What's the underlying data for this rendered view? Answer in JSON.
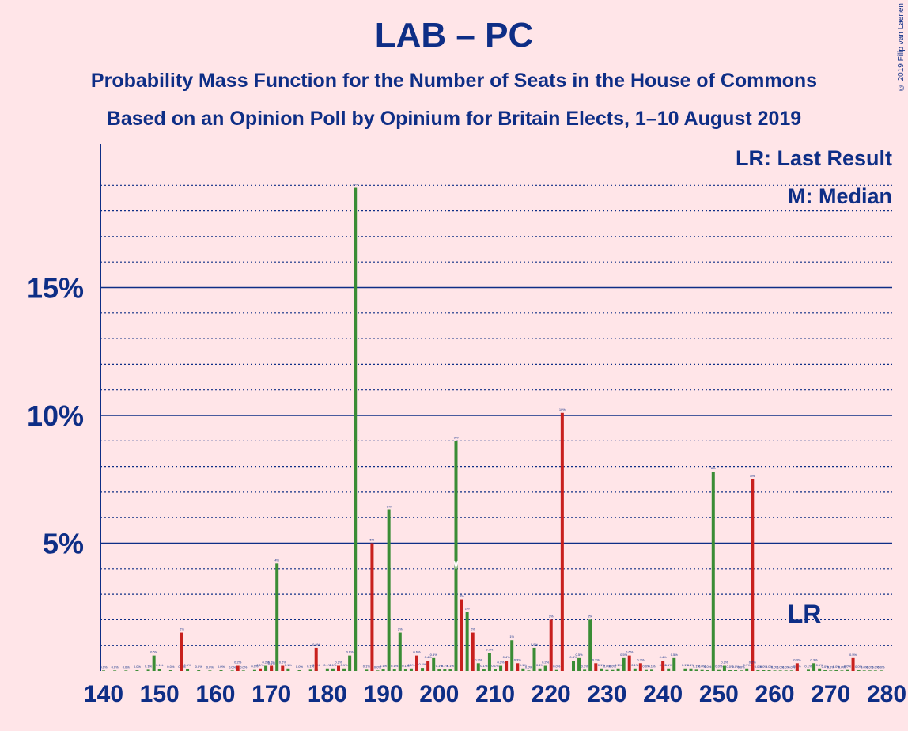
{
  "title": "LAB – PC",
  "subtitle1": "Probability Mass Function for the Number of Seats in the House of Commons",
  "subtitle2": "Based on an Opinion Poll by Opinium for Britain Elects, 1–10 August 2019",
  "legend": {
    "lr": "LR: Last Result",
    "median": "M: Median"
  },
  "copyright": "© 2019 Filip van Laenen",
  "colors": {
    "background": "#FFE5E8",
    "text": "#0E2E86",
    "green": "#3A8C35",
    "red": "#C8201E"
  },
  "chart_data": {
    "type": "bar",
    "xlabel": "",
    "ylabel": "",
    "xlim": [
      140,
      280
    ],
    "ylim": [
      0,
      20
    ],
    "x_ticks": [
      "140",
      "150",
      "160",
      "170",
      "180",
      "190",
      "200",
      "210",
      "220",
      "230",
      "240",
      "250",
      "260",
      "270",
      "280"
    ],
    "y_ticks": [
      "5%",
      "10%",
      "15%"
    ],
    "median": 203,
    "last_result": 267,
    "last_result_label": "LR",
    "series": [
      {
        "color": "green",
        "points": [
          [
            140,
            0.02
          ],
          [
            142,
            0.02
          ],
          [
            144,
            0.02
          ],
          [
            146,
            0.03
          ],
          [
            148,
            0.05
          ],
          [
            149,
            0.6
          ],
          [
            150,
            0.09
          ],
          [
            152,
            0.03
          ],
          [
            154,
            0.03
          ],
          [
            155,
            0.09
          ],
          [
            157,
            0.03
          ],
          [
            159,
            0.02
          ],
          [
            161,
            0.03
          ],
          [
            163,
            0.02
          ],
          [
            165,
            0.02
          ],
          [
            167,
            0.04
          ],
          [
            169,
            0.2
          ],
          [
            170,
            0.15
          ],
          [
            171,
            4.2
          ],
          [
            173,
            0.1
          ],
          [
            175,
            0.03
          ],
          [
            177,
            0.05
          ],
          [
            178,
            0.1
          ],
          [
            180,
            0.1
          ],
          [
            181,
            0.1
          ],
          [
            183,
            0.1
          ],
          [
            184,
            0.6
          ],
          [
            185,
            18.9
          ],
          [
            187,
            0.05
          ],
          [
            189,
            0.02
          ],
          [
            190,
            0.06
          ],
          [
            191,
            6.3
          ],
          [
            192,
            0.06
          ],
          [
            193,
            1.5
          ],
          [
            194,
            0.06
          ],
          [
            195,
            0.1
          ],
          [
            197,
            0.12
          ],
          [
            199,
            0.5
          ],
          [
            200,
            0.06
          ],
          [
            201,
            0.06
          ],
          [
            202,
            0.06
          ],
          [
            203,
            9.0
          ],
          [
            205,
            2.3
          ],
          [
            207,
            0.3
          ],
          [
            208,
            0.06
          ],
          [
            209,
            0.7
          ],
          [
            210,
            0.06
          ],
          [
            211,
            0.2
          ],
          [
            213,
            1.2
          ],
          [
            215,
            0.1
          ],
          [
            216,
            0.02
          ],
          [
            217,
            0.9
          ],
          [
            218,
            0.1
          ],
          [
            219,
            0.2
          ],
          [
            221,
            0.04
          ],
          [
            224,
            0.4
          ],
          [
            225,
            0.5
          ],
          [
            226,
            0.05
          ],
          [
            227,
            2.0
          ],
          [
            229,
            0.1
          ],
          [
            230,
            0.04
          ],
          [
            231,
            0.04
          ],
          [
            232,
            0.1
          ],
          [
            233,
            0.5
          ],
          [
            235,
            0.1
          ],
          [
            237,
            0.04
          ],
          [
            238,
            0.05
          ],
          [
            240,
            0.1
          ],
          [
            241,
            0.1
          ],
          [
            242,
            0.5
          ],
          [
            244,
            0.1
          ],
          [
            245,
            0.1
          ],
          [
            246,
            0.05
          ],
          [
            247,
            0.04
          ],
          [
            248,
            0.03
          ],
          [
            249,
            7.8
          ],
          [
            250,
            0.04
          ],
          [
            251,
            0.2
          ],
          [
            252,
            0.03
          ],
          [
            253,
            0.03
          ],
          [
            254,
            0.02
          ],
          [
            255,
            0.1
          ],
          [
            257,
            0.03
          ],
          [
            258,
            0.03
          ],
          [
            259,
            0.03
          ],
          [
            260,
            0.02
          ],
          [
            261,
            0.02
          ],
          [
            262,
            0.02
          ],
          [
            263,
            0.02
          ],
          [
            264,
            0.04
          ],
          [
            266,
            0.05
          ],
          [
            267,
            0.3
          ],
          [
            268,
            0.1
          ],
          [
            269,
            0.03
          ],
          [
            270,
            0.02
          ],
          [
            271,
            0.03
          ],
          [
            272,
            0.02
          ],
          [
            273,
            0.04
          ],
          [
            275,
            0.03
          ],
          [
            276,
            0.02
          ],
          [
            277,
            0.02
          ],
          [
            278,
            0.02
          ],
          [
            279,
            0.02
          ]
        ]
      },
      {
        "color": "red",
        "points": [
          [
            154,
            1.5
          ],
          [
            164,
            0.2
          ],
          [
            168,
            0.1
          ],
          [
            170,
            0.2
          ],
          [
            172,
            0.2
          ],
          [
            178,
            0.9
          ],
          [
            182,
            0.2
          ],
          [
            188,
            5.0
          ],
          [
            196,
            0.6
          ],
          [
            198,
            0.4
          ],
          [
            204,
            2.8
          ],
          [
            206,
            1.5
          ],
          [
            212,
            0.4
          ],
          [
            214,
            0.3
          ],
          [
            220,
            2.0
          ],
          [
            222,
            10.1
          ],
          [
            228,
            0.3
          ],
          [
            234,
            0.6
          ],
          [
            236,
            0.3
          ],
          [
            240,
            0.4
          ],
          [
            256,
            7.5
          ],
          [
            256,
            0.2
          ],
          [
            264,
            0.3
          ],
          [
            274,
            0.5
          ]
        ]
      }
    ]
  }
}
